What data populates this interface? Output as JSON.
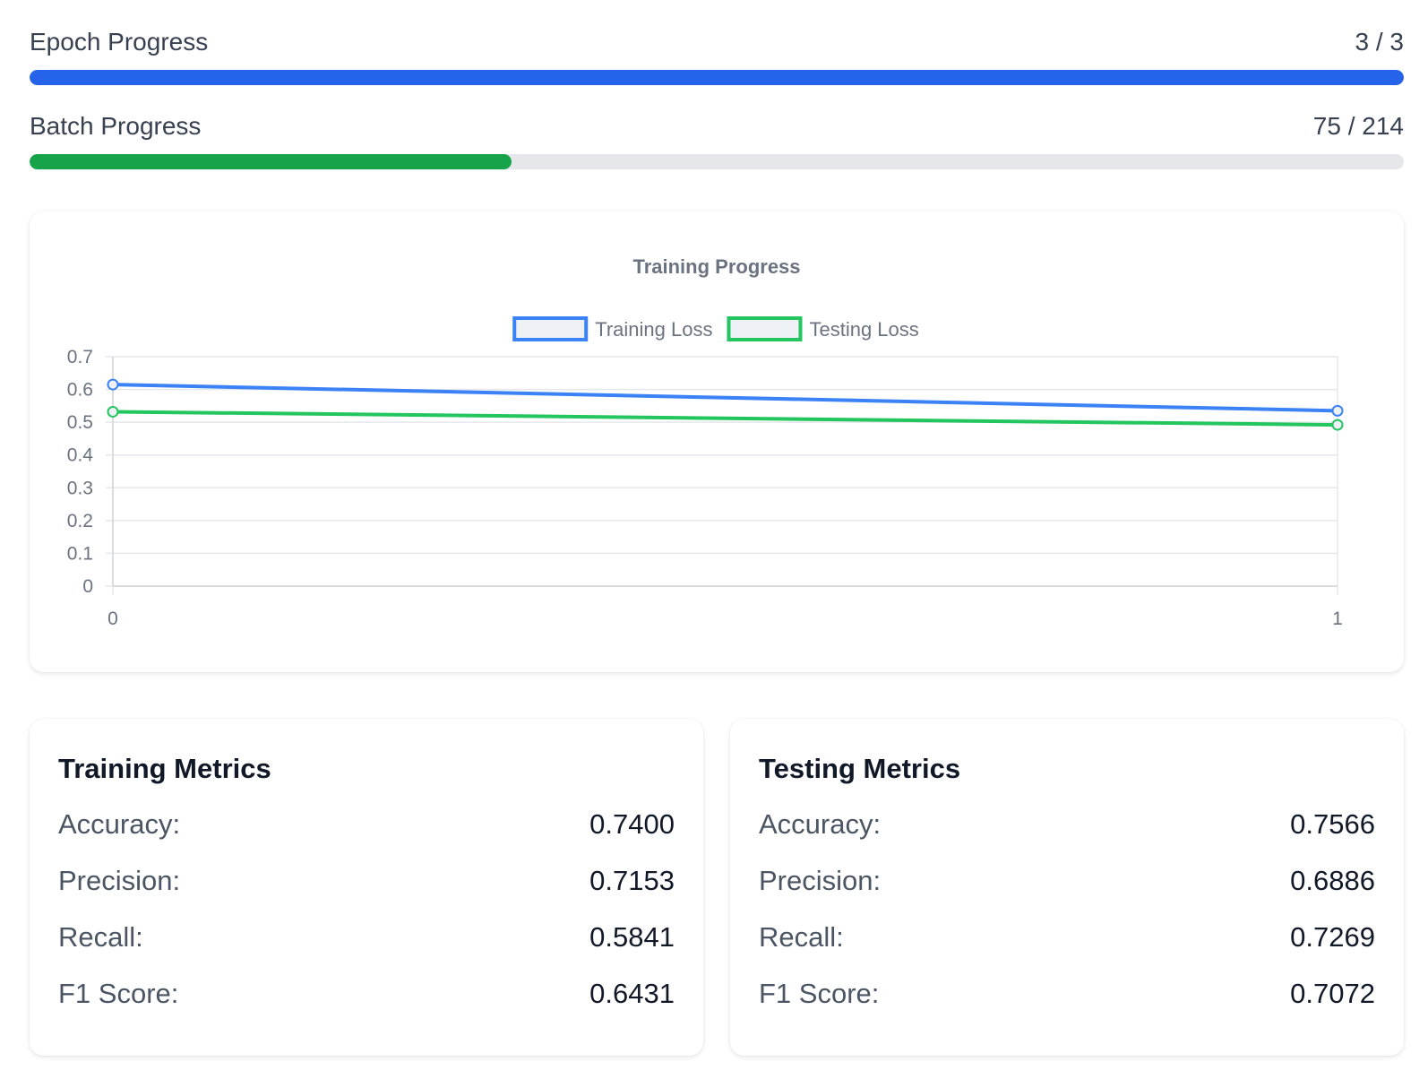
{
  "epoch": {
    "label": "Epoch Progress",
    "counter": "3 / 3",
    "fraction": 1.0,
    "color": "#2563eb"
  },
  "batch": {
    "label": "Batch Progress",
    "counter": "75 / 214",
    "fraction": 0.35046728971962615,
    "color": "#16a34a"
  },
  "chart_data": {
    "type": "line",
    "title": "Training Progress",
    "x": [
      0,
      1
    ],
    "x_ticks": [
      "0",
      "1"
    ],
    "ylim": [
      0,
      0.7
    ],
    "y_ticks": [
      "0",
      "0.1",
      "0.2",
      "0.3",
      "0.4",
      "0.5",
      "0.6",
      "0.7"
    ],
    "grid": true,
    "legend_position": "top",
    "series": [
      {
        "name": "Training Loss",
        "values": [
          0.615,
          0.535
        ],
        "color": "#3b82f6"
      },
      {
        "name": "Testing Loss",
        "values": [
          0.532,
          0.492
        ],
        "color": "#22c55e"
      }
    ]
  },
  "training_metrics": {
    "title": "Training Metrics",
    "rows": [
      {
        "label": "Accuracy:",
        "value": "0.7400"
      },
      {
        "label": "Precision:",
        "value": "0.7153"
      },
      {
        "label": "Recall:",
        "value": "0.5841"
      },
      {
        "label": "F1 Score:",
        "value": "0.6431"
      }
    ]
  },
  "testing_metrics": {
    "title": "Testing Metrics",
    "rows": [
      {
        "label": "Accuracy:",
        "value": "0.7566"
      },
      {
        "label": "Precision:",
        "value": "0.6886"
      },
      {
        "label": "Recall:",
        "value": "0.7269"
      },
      {
        "label": "F1 Score:",
        "value": "0.7072"
      }
    ]
  }
}
